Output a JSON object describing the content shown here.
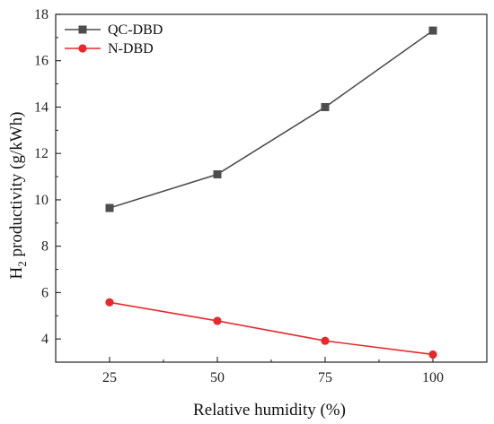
{
  "chart_data": {
    "type": "line",
    "x": [
      25,
      50,
      75,
      100
    ],
    "x_tick_labels": [
      "25",
      "50",
      "75",
      "100"
    ],
    "y_tick_labels": [
      "4",
      "6",
      "8",
      "10",
      "12",
      "14",
      "16",
      "18"
    ],
    "xlabel": "Relative humidity (%)",
    "ylabel": {
      "prefix": "H",
      "subscript": "2",
      "suffix": " productivity (g/kWh)"
    },
    "ylim": [
      3.0,
      18.0
    ],
    "xlim": [
      12.5,
      112.5
    ],
    "grid": false,
    "legend_position": "top-left",
    "series": [
      {
        "name": "QC-DBD",
        "values": [
          9.65,
          11.1,
          14.0,
          17.3
        ],
        "color": "#4d4d4d",
        "marker": "square"
      },
      {
        "name": "N-DBD",
        "values": [
          5.58,
          4.78,
          3.92,
          3.33
        ],
        "color": "#e8282b",
        "marker": "circle"
      }
    ]
  }
}
